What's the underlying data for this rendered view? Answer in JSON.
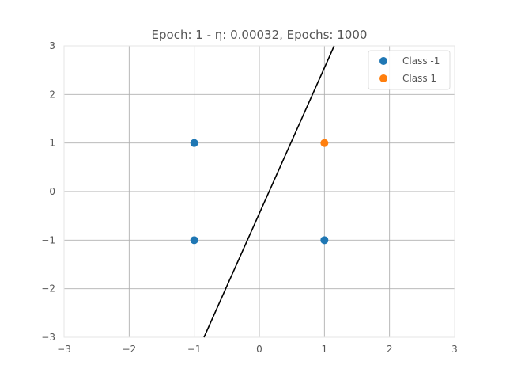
{
  "chart_data": {
    "type": "scatter",
    "title": "Epoch: 1 - η: 0.00032, Epochs: 1000",
    "xlabel": "",
    "ylabel": "",
    "xlim": [
      -3,
      3
    ],
    "ylim": [
      -3,
      3
    ],
    "x_ticks": [
      -3,
      -2,
      -1,
      0,
      1,
      2,
      3
    ],
    "y_ticks": [
      -3,
      -2,
      -1,
      0,
      1,
      2,
      3
    ],
    "x_tick_labels": [
      "−3",
      "−2",
      "−1",
      "0",
      "1",
      "2",
      "3"
    ],
    "y_tick_labels": [
      "−3",
      "−2",
      "−1",
      "0",
      "1",
      "2",
      "3"
    ],
    "grid": true,
    "legend_position": "top-right",
    "series": [
      {
        "name": "Class -1",
        "color": "#1f77b4",
        "points": [
          [
            -1,
            1
          ],
          [
            -1,
            -1
          ],
          [
            1,
            -1
          ]
        ]
      },
      {
        "name": "Class 1",
        "color": "#ff7f0e",
        "points": [
          [
            1,
            1
          ]
        ]
      }
    ],
    "decision_boundary": {
      "color": "#000000",
      "points": [
        [
          -0.85,
          -3
        ],
        [
          1.15,
          3
        ]
      ]
    }
  }
}
